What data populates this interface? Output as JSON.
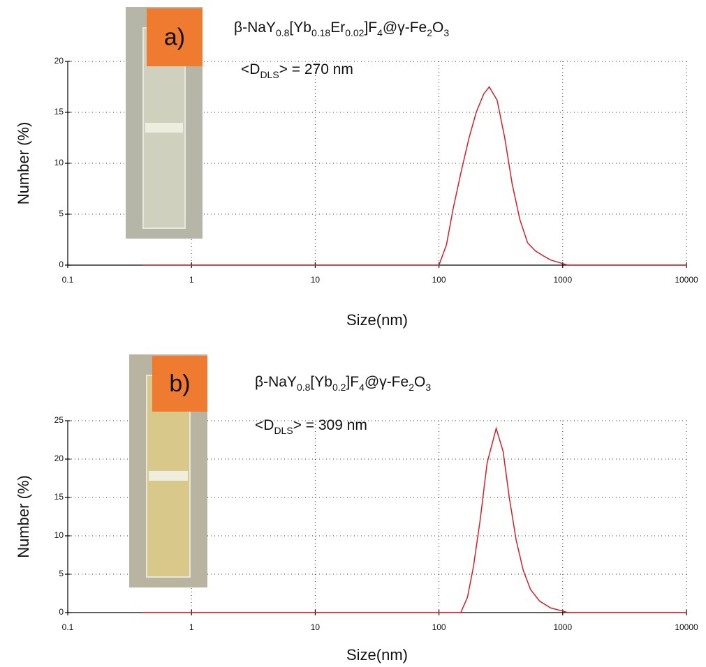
{
  "chart_data": [
    {
      "type": "line",
      "panel_label": "a)",
      "title": [
        "β-NaY",
        "0.8",
        "[Yb",
        "0.18",
        "Er",
        "0.02",
        "]F",
        "4",
        "@γ-Fe",
        "2",
        "O",
        "3"
      ],
      "annotation": [
        "<D",
        "DLS",
        "> = 270 nm"
      ],
      "xlabel": "Size(nm)",
      "ylabel": "Number (%)",
      "xscale": "log",
      "grid": true,
      "color": "#d0202a",
      "xlim": [
        0.1,
        10000
      ],
      "xticks": [
        0.1,
        1,
        10,
        100,
        1000,
        10000
      ],
      "ylim": [
        0,
        20
      ],
      "yticks": [
        0,
        5,
        10,
        15,
        20
      ],
      "x": [
        0.4,
        100,
        115,
        130,
        150,
        175,
        200,
        230,
        255,
        295,
        340,
        390,
        450,
        520,
        600,
        700,
        800,
        1000,
        1100,
        10000
      ],
      "values": [
        0,
        0,
        2,
        5.5,
        9,
        12.5,
        15,
        16.8,
        17.5,
        16.2,
        12.5,
        8,
        4.5,
        2.2,
        1.4,
        0.9,
        0.5,
        0.15,
        0,
        0
      ]
    },
    {
      "type": "line",
      "panel_label": "b)",
      "title": [
        "β-NaY",
        "0.8",
        "[Yb",
        "0.2",
        "]F",
        "4",
        "@γ-Fe",
        "2",
        "O",
        "3"
      ],
      "annotation": [
        "<D",
        "DLS",
        "> = 309 nm"
      ],
      "xlabel": "Size(nm)",
      "ylabel": "Number (%)",
      "xscale": "log",
      "grid": true,
      "color": "#d0202a",
      "xlim": [
        0.1,
        10000
      ],
      "xticks": [
        0.1,
        1,
        10,
        100,
        1000,
        10000
      ],
      "ylim": [
        0,
        25
      ],
      "yticks": [
        0,
        5,
        10,
        15,
        20,
        25
      ],
      "x": [
        0.4,
        150,
        170,
        190,
        215,
        245,
        290,
        330,
        370,
        420,
        480,
        550,
        650,
        800,
        1000,
        1100,
        10000
      ],
      "values": [
        0,
        0,
        2,
        6,
        12,
        19.5,
        24,
        21,
        15,
        9.5,
        5.5,
        3,
        1.5,
        0.6,
        0.2,
        0,
        0
      ]
    }
  ]
}
